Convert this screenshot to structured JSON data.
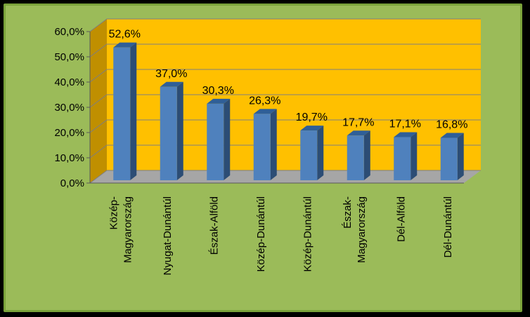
{
  "chart_data": {
    "type": "bar",
    "categories": [
      "Közép-\nMagyarország",
      "Nyugat-Dunántúl",
      "Észak-Alföld",
      "Közép-Dunántúl",
      "Közép-Dunántúl",
      "Észak-\nMagyarország",
      "Dél-Alföld",
      "Dél-Dunántúl"
    ],
    "values": [
      52.6,
      37.0,
      30.3,
      26.3,
      19.7,
      17.7,
      17.1,
      16.8
    ],
    "data_labels": [
      "52,6%",
      "37,0%",
      "30,3%",
      "26,3%",
      "19,7%",
      "17,7%",
      "17,1%",
      "16,8%"
    ],
    "ylim": [
      0,
      60
    ],
    "yticks": [
      "0,0%",
      "10,0%",
      "20,0%",
      "30,0%",
      "40,0%",
      "50,0%",
      "60,0%"
    ],
    "grid": true,
    "legend": "none",
    "colors": {
      "background": "#9bbb59",
      "plot_wall": "#ffc000",
      "side_wall": "#c08f00",
      "floor": "#a6a6a6",
      "bar_front": "#4f81bd",
      "bar_side": "#2c4d75",
      "bar_top": "#2f5f98"
    }
  }
}
